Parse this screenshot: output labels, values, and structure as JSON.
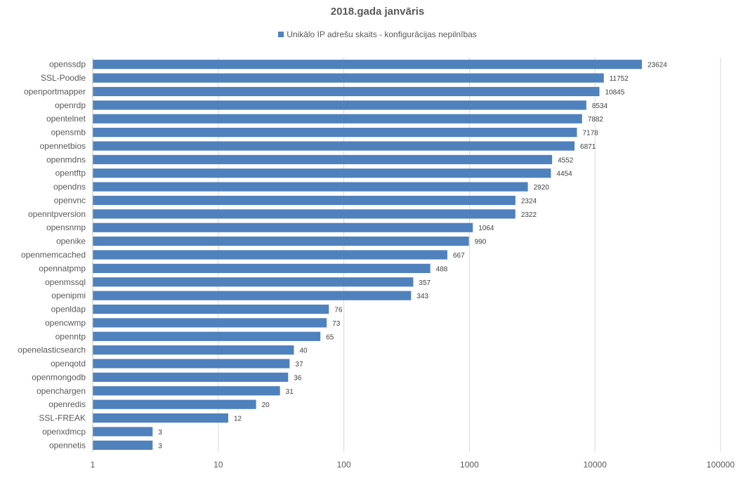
{
  "chart_data": {
    "type": "bar",
    "orientation": "horizontal",
    "title": "2018.gada janvāris",
    "legend_position": "top",
    "x_scale": "log",
    "xlim": [
      1,
      100000
    ],
    "grid": true,
    "x_tick_labels": [
      "1",
      "10",
      "100",
      "1000",
      "10000",
      "100000"
    ],
    "categories": [
      "openssdp",
      "SSL-Poodle",
      "openportmapper",
      "openrdp",
      "opentelnet",
      "opensmb",
      "opennetbios",
      "openmdns",
      "opentftp",
      "opendns",
      "openvnc",
      "openntpversion",
      "opensnmp",
      "openike",
      "openmemcached",
      "opennatpmp",
      "openmssql",
      "openipmi",
      "openldap",
      "opencwmp",
      "openntp",
      "openelasticsearch",
      "openqotd",
      "openmongodb",
      "openchargen",
      "openredis",
      "SSL-FREAK",
      "openxdmcp",
      "opennetis"
    ],
    "series": [
      {
        "name": "Unikālo IP adrešu skaits  -  konfigurācijas nepilnības",
        "color": "#4F81BD",
        "values": [
          23624,
          11752,
          10845,
          8534,
          7882,
          7178,
          6871,
          4552,
          4454,
          2920,
          2324,
          2322,
          1064,
          990,
          667,
          488,
          357,
          343,
          76,
          73,
          65,
          40,
          37,
          36,
          31,
          20,
          12,
          3,
          3
        ]
      }
    ]
  }
}
